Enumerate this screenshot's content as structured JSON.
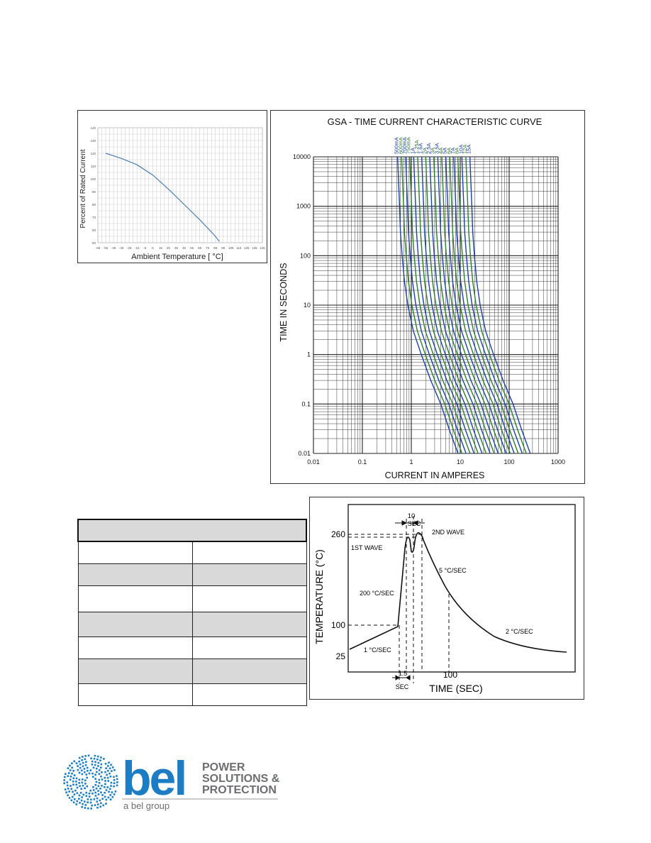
{
  "derating_chart": {
    "type": "line",
    "ylabel": "Percent of Rated Current",
    "xlabel": "Ambient Temperature [ °C]",
    "y_ticks": [
      "140",
      "130",
      "120",
      "110",
      "100",
      "90",
      "80",
      "70",
      "60",
      "50"
    ],
    "x_ticks": [
      "-65",
      "-55",
      "-45",
      "-35",
      "-25",
      "-15",
      "-5",
      "5",
      "15",
      "25",
      "35",
      "45",
      "55",
      "65",
      "75",
      "85",
      "95",
      "105",
      "115",
      "125",
      "135",
      "145"
    ],
    "ylim": [
      50,
      140
    ],
    "xlim": [
      -65,
      145
    ],
    "line_color": "#4a7fb5"
  },
  "tcc_chart": {
    "type": "line",
    "title": "GSA - TIME CURRENT CHARACTERISTIC CURVE",
    "xlabel": "CURRENT IN AMPERES",
    "ylabel": "TIME IN SECONDS",
    "x_ticks": [
      "0.01",
      "0.1",
      "1",
      "10",
      "100",
      "1000"
    ],
    "y_ticks": [
      "10000",
      "1000",
      "100",
      "10",
      "1",
      "0.1",
      "0.01"
    ],
    "scale": "log-log",
    "series_labels": [
      "500mA",
      "600mA",
      "700mA",
      "750mA",
      "1A",
      "1.25A",
      "1.6A",
      "2A",
      "2.5A",
      "3A",
      "3.5A",
      "4A",
      "5A",
      "6A",
      "7A",
      "8A",
      "10A",
      "12A",
      "15A"
    ],
    "series_colors": [
      "#1f3fa8",
      "#2e7d2e"
    ]
  },
  "solder_chart": {
    "type": "line",
    "ylabel": "TEMPERATURE (°C)",
    "xlabel": "TIME (SEC)",
    "y_ticks": [
      "260",
      "100",
      "25"
    ],
    "x_tick": "100",
    "annotations": {
      "ten_sec": "10",
      "sec": "SEC",
      "second_wave": "2ND WAVE",
      "first_wave": "1ST WAVE",
      "rate_5": "5 °C/SEC",
      "rate_200": "200 °C/SEC",
      "rate_2": "2 °C/SEC",
      "rate_1": "1 °C/SEC",
      "one_five": "1.5",
      "one_five_sec": "SEC"
    }
  },
  "spec_table": {
    "header": "",
    "rows": [
      [
        "",
        ""
      ],
      [
        "",
        ""
      ],
      [
        "",
        ""
      ],
      [
        "",
        ""
      ],
      [
        "",
        ""
      ],
      [
        "",
        ""
      ],
      [
        "",
        ""
      ]
    ]
  },
  "logo": {
    "word": "bel",
    "line1": "POWER",
    "line2": "SOLUTIONS &",
    "line3": "PROTECTION",
    "tagline": "a bel group",
    "brand_color": "#1d7dc4",
    "text_color": "#6d6e71"
  }
}
